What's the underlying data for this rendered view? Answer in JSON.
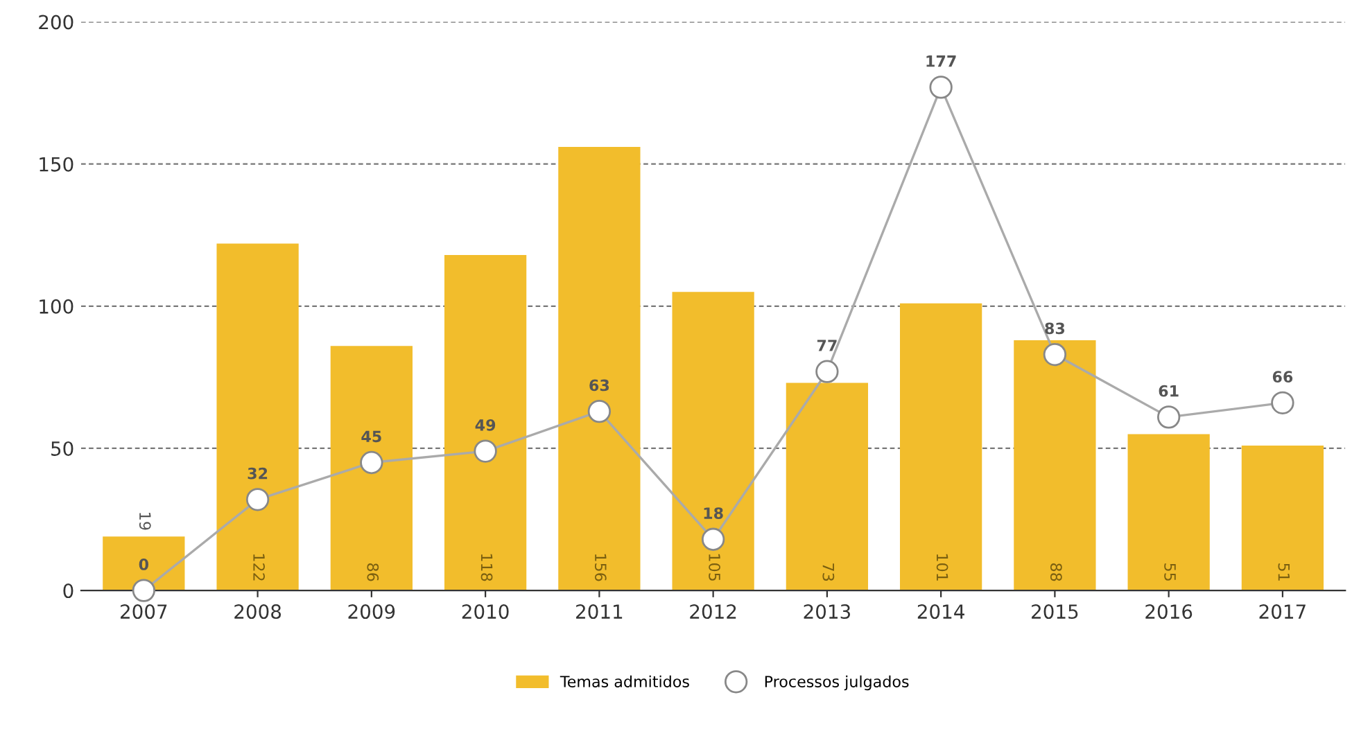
{
  "chart_data": {
    "type": "bar",
    "categories": [
      "2007",
      "2008",
      "2009",
      "2010",
      "2011",
      "2012",
      "2013",
      "2014",
      "2015",
      "2016",
      "2017"
    ],
    "series": [
      {
        "name": "Temas admitidos",
        "color": "#f2bd2c",
        "values": [
          19,
          122,
          86,
          118,
          156,
          105,
          73,
          101,
          88,
          55,
          51
        ]
      },
      {
        "name": "Processos julgados",
        "type": "line",
        "color": "#aaaaaa",
        "marker": "circle",
        "values": [
          0,
          32,
          45,
          49,
          63,
          18,
          77,
          177,
          83,
          61,
          66
        ]
      }
    ],
    "ylim": [
      0,
      200
    ],
    "yticks": [
      0,
      50,
      100,
      150,
      200
    ],
    "grid": "y",
    "legend": "bottom",
    "data_labels": true
  }
}
